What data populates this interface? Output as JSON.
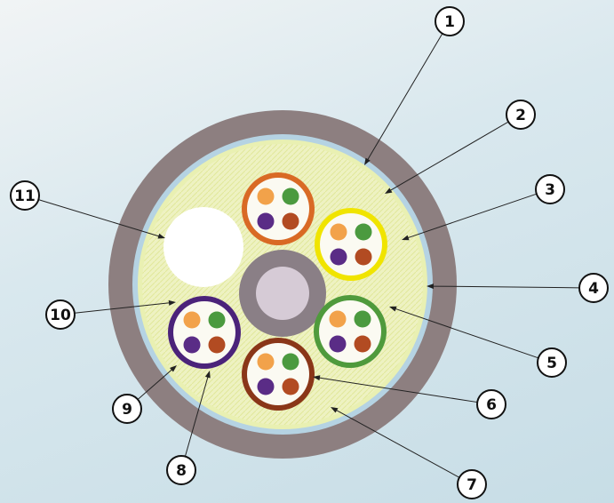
{
  "diagram": {
    "callouts": [
      {
        "number": "1"
      },
      {
        "number": "2"
      },
      {
        "number": "3"
      },
      {
        "number": "4"
      },
      {
        "number": "5"
      },
      {
        "number": "6"
      },
      {
        "number": "7"
      },
      {
        "number": "8"
      },
      {
        "number": "9"
      },
      {
        "number": "10"
      },
      {
        "number": "11"
      }
    ],
    "colors": {
      "outer_sheath": "#8d7f80",
      "inner_blue_layer": "#b5d3e3",
      "filler": "#eef2c0",
      "central_member_outer": "#8a7f86",
      "central_member_inner": "#d6cbd6",
      "filler_rod": "#ffffff",
      "unit_orange": "#d96a25",
      "unit_yellow": "#f0e400",
      "unit_green": "#4f9a3c",
      "unit_brown": "#8a3618",
      "unit_purple": "#4b237a",
      "fiber_orange": "#f2a24a",
      "fiber_green": "#4b9a3f",
      "fiber_purple": "#5a2c86",
      "fiber_brown": "#b24b22"
    }
  }
}
